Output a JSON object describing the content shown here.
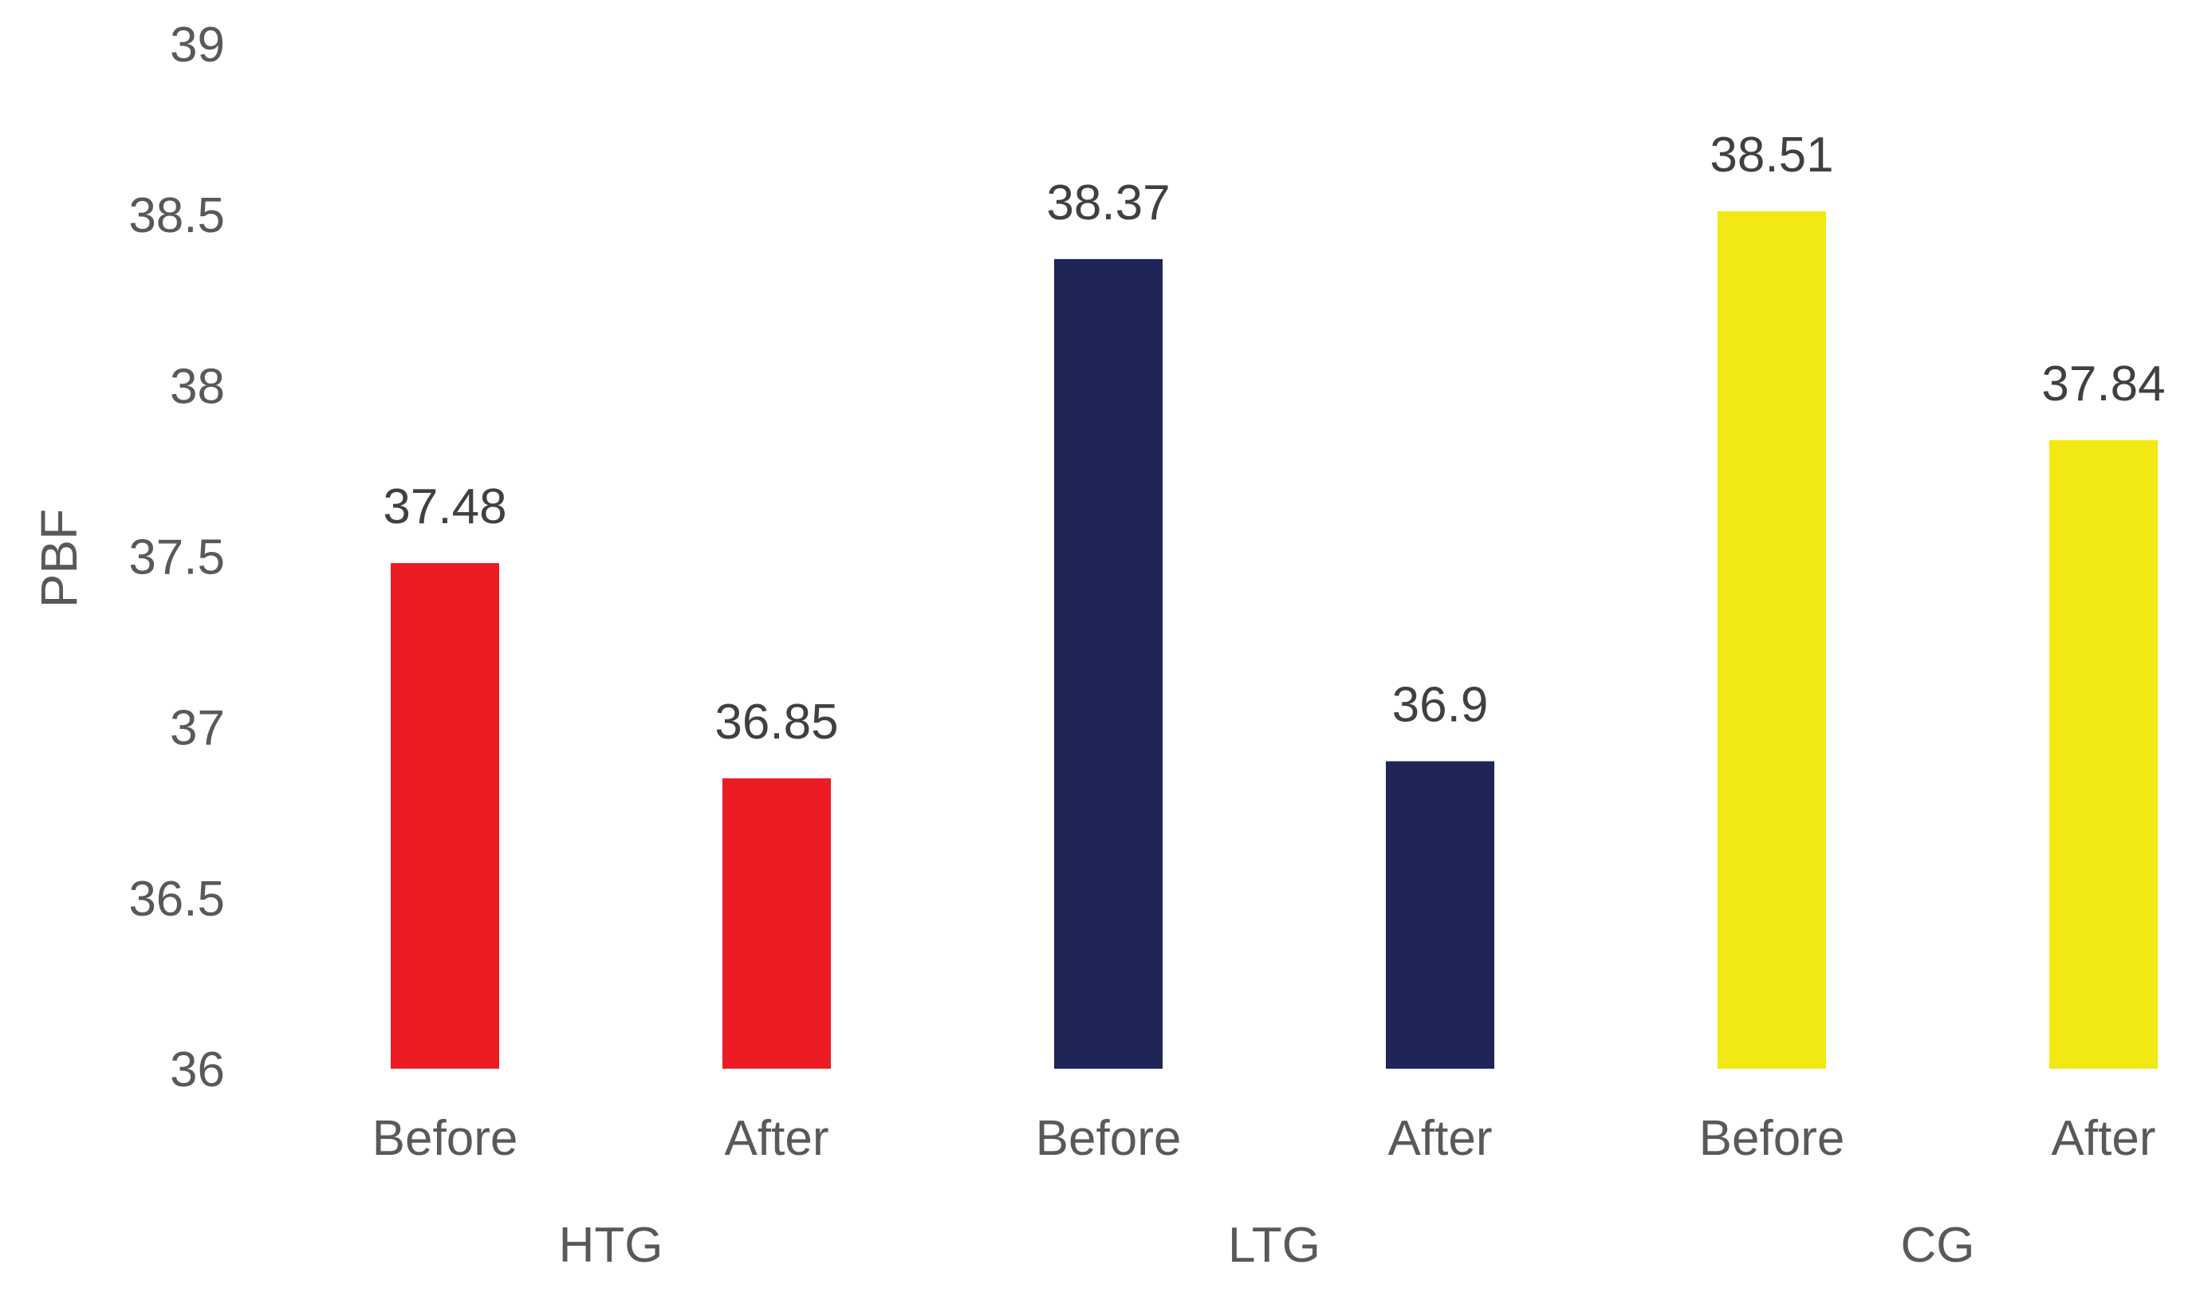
{
  "chart_data": {
    "type": "bar",
    "title": "",
    "xlabel": "",
    "ylabel": "PBF",
    "ylim": [
      36,
      39
    ],
    "yticks": [
      "39",
      "38.5",
      "38",
      "37.5",
      "37",
      "36.5",
      "36"
    ],
    "grid": false,
    "legend": "none",
    "groups": [
      {
        "name": "HTG",
        "color": "#ED1C24",
        "bars": [
          {
            "category": "Before",
            "value": 37.48,
            "label": "37.48"
          },
          {
            "category": "After",
            "value": 36.85,
            "label": "36.85"
          }
        ]
      },
      {
        "name": "LTG",
        "color": "#1F2557",
        "bars": [
          {
            "category": "Before",
            "value": 38.37,
            "label": "38.37"
          },
          {
            "category": "After",
            "value": 36.9,
            "label": "36.9"
          }
        ]
      },
      {
        "name": "CG",
        "color": "#F2E814",
        "bars": [
          {
            "category": "Before",
            "value": 38.51,
            "label": "38.51"
          },
          {
            "category": "After",
            "value": 37.84,
            "label": "37.84"
          }
        ]
      }
    ]
  }
}
